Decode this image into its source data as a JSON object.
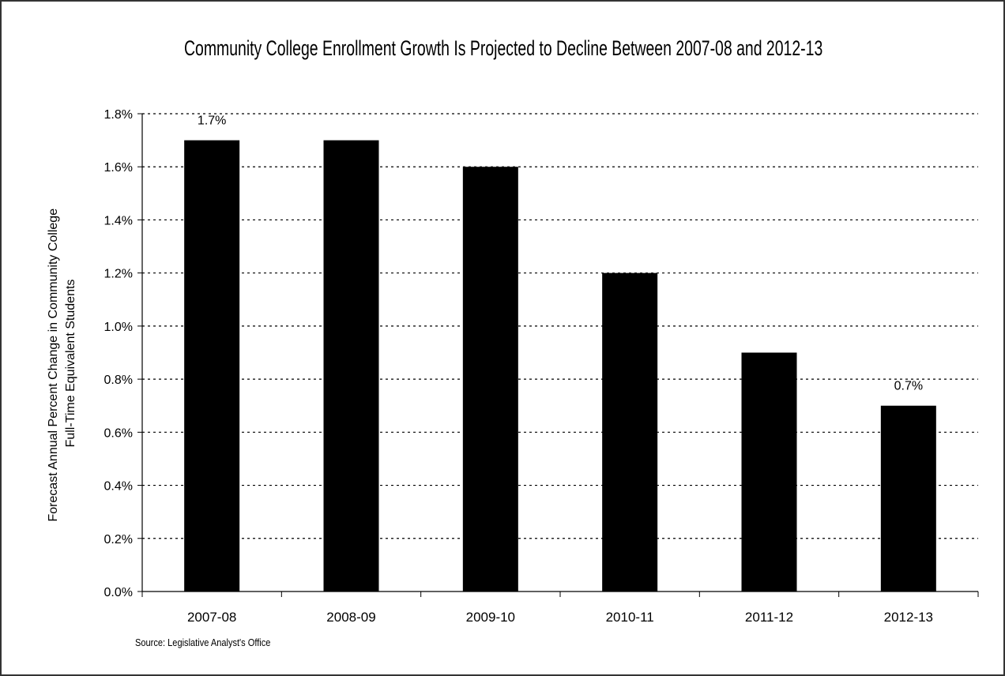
{
  "chart_data": {
    "type": "bar",
    "title": "Community College Enrollment Growth Is Projected to Decline Between 2007-08 and 2012-13",
    "ylabel": [
      "Forecast Annual Percent Change in Community College",
      "Full-Time Equivalent Students"
    ],
    "xlabel": "",
    "categories": [
      "2007-08",
      "2008-09",
      "2009-10",
      "2010-11",
      "2011-12",
      "2012-13"
    ],
    "values": [
      1.7,
      1.7,
      1.6,
      1.2,
      0.9,
      0.7
    ],
    "value_unit": "%",
    "data_labels": [
      {
        "index": 0,
        "text": "1.7%"
      },
      {
        "index": 5,
        "text": "0.7%"
      }
    ],
    "ylim": [
      0,
      1.8
    ],
    "yticks": [
      "0.0%",
      "0.2%",
      "0.4%",
      "0.6%",
      "0.8%",
      "1.0%",
      "1.2%",
      "1.4%",
      "1.6%",
      "1.8%"
    ],
    "grid": "horizontal-dotted",
    "legend": "none",
    "bar_color": "#000000"
  },
  "source_note": "Source: Legislative Analyst's Office"
}
